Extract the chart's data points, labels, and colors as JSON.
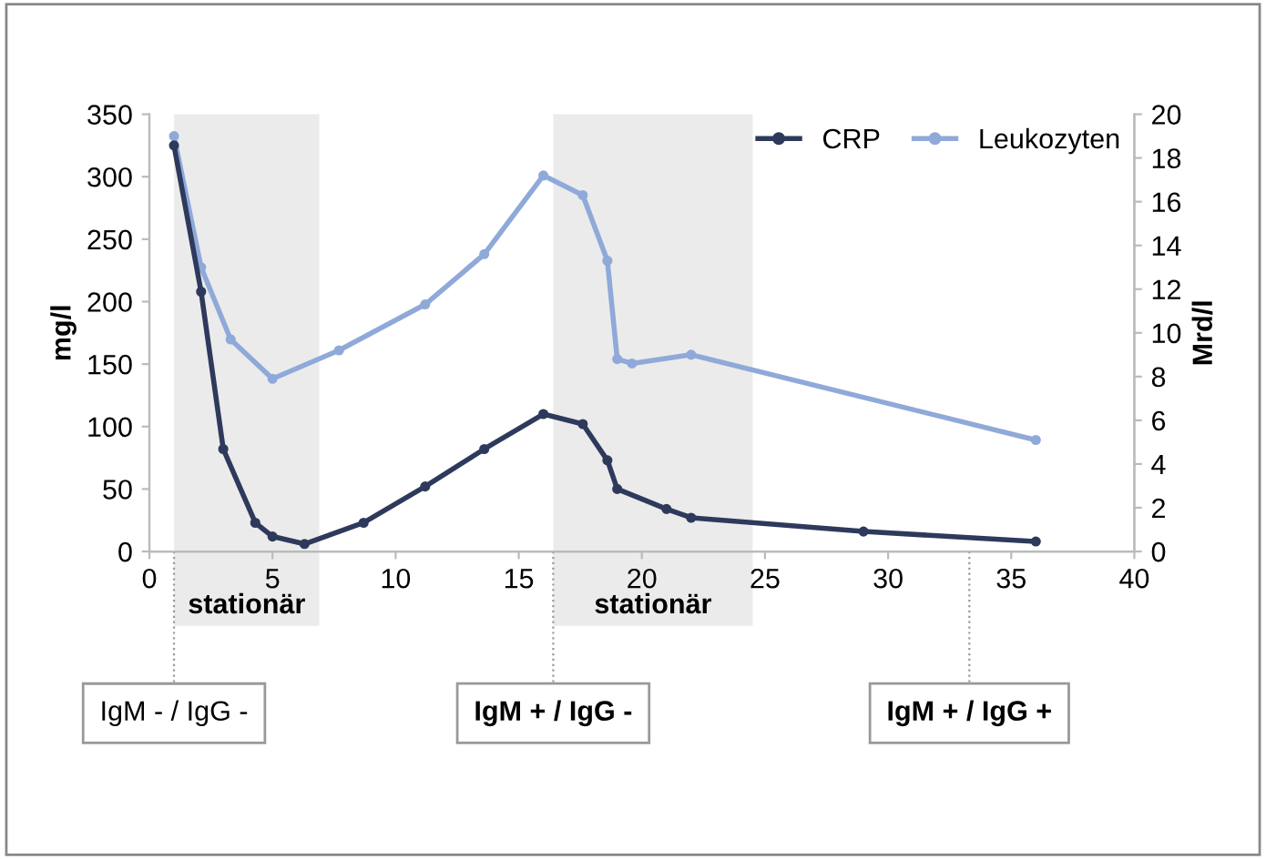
{
  "chart_data": {
    "type": "line",
    "ylabel": "mg/l",
    "y2label": "Mrd/l",
    "xlim": [
      0,
      40
    ],
    "xticks": [
      0,
      5,
      10,
      15,
      20,
      25,
      30,
      35,
      40
    ],
    "ylim": [
      0,
      350
    ],
    "yticks": [
      0,
      50,
      100,
      150,
      200,
      250,
      300,
      350
    ],
    "y2lim": [
      0,
      20
    ],
    "y2ticks": [
      0,
      2,
      4,
      6,
      8,
      10,
      12,
      14,
      16,
      18,
      20
    ],
    "series": [
      {
        "name": "CRP",
        "color": "#2e3a5c",
        "x": [
          1,
          2.1,
          3,
          4.3,
          5,
          6.3,
          8.7,
          11.2,
          13.6,
          16,
          17.6,
          18.6,
          19,
          21,
          22,
          29,
          36
        ],
        "values": [
          325,
          208,
          82,
          23,
          12,
          6,
          23,
          52,
          82,
          110,
          102,
          73,
          50,
          34,
          27,
          16,
          8
        ]
      },
      {
        "name": "Leukozyten",
        "color": "#8fa9d9",
        "axis": "y2",
        "x": [
          1,
          2.1,
          3.3,
          5,
          7.7,
          11.2,
          13.6,
          16,
          17.6,
          18.6,
          19,
          19.6,
          22,
          36
        ],
        "values": [
          19.0,
          13.0,
          9.7,
          7.9,
          9.2,
          11.3,
          13.6,
          17.2,
          16.3,
          13.3,
          8.8,
          8.6,
          9.0,
          5.1
        ]
      }
    ],
    "bands": [
      {
        "axis": "x",
        "from": 1,
        "to": 6.9,
        "label": "stationär",
        "color": "#ebebeb"
      },
      {
        "axis": "x",
        "from": 16.4,
        "to": 24.5,
        "label": "stationär",
        "color": "#ebebeb"
      }
    ],
    "ref_lines": [
      {
        "axis": "x",
        "value": 1,
        "label": "IgM - / IgG -",
        "line_style": "dotted"
      },
      {
        "axis": "x",
        "value": 16.4,
        "label": "IgM + / IgG -",
        "line_style": "dotted"
      },
      {
        "axis": "x",
        "value": 33.3,
        "label": "IgM + / IgG +",
        "line_style": "dotted"
      }
    ],
    "marker": "circle",
    "line_style": "solid",
    "grid": false,
    "legend": "top right"
  }
}
